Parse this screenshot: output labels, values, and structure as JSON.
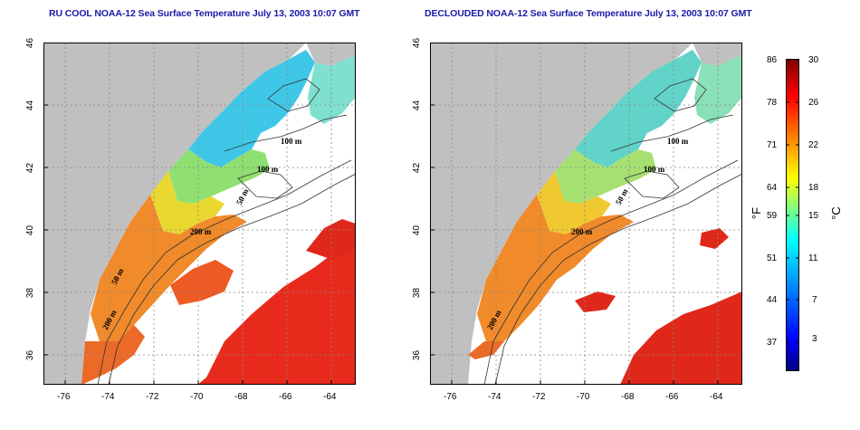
{
  "maps": [
    {
      "title": "RU COOL NOAA-12 Sea Surface Temperature July 13, 2003 10:07 GMT",
      "contour_labels": [
        "100 m",
        "100 m",
        "50 m",
        "200 m",
        "50 m",
        "200 m"
      ]
    },
    {
      "title": "DECLOUDED NOAA-12 Sea Surface Temperature July 13, 2003 10:07 GMT",
      "contour_labels": [
        "100 m",
        "100 m",
        "50 m",
        "200 m",
        "200 m"
      ]
    }
  ],
  "axes": {
    "x_ticks": [
      "-76",
      "-74",
      "-72",
      "-70",
      "-68",
      "-66",
      "-64"
    ],
    "y_ticks": [
      "46",
      "44",
      "42",
      "40",
      "38",
      "36"
    ],
    "x_range": [
      -77,
      -63
    ],
    "y_range": [
      35,
      46
    ]
  },
  "colorbar": {
    "fahrenheit_ticks": [
      "86",
      "78",
      "71",
      "64",
      "59",
      "51",
      "44",
      "37"
    ],
    "celsius_ticks": [
      "30",
      "26",
      "22",
      "18",
      "15",
      "11",
      "7",
      "3"
    ],
    "unit_f": "°F",
    "unit_c": "°C",
    "colors": [
      "#00007f",
      "#0000ff",
      "#0080ff",
      "#00ffff",
      "#80ff80",
      "#ffff00",
      "#ff8000",
      "#ff0000",
      "#7f0000"
    ]
  },
  "colors": {
    "land": "#c0c0c0",
    "title": "#1a1aa8",
    "contour": "#333333",
    "grid": "#888888"
  }
}
